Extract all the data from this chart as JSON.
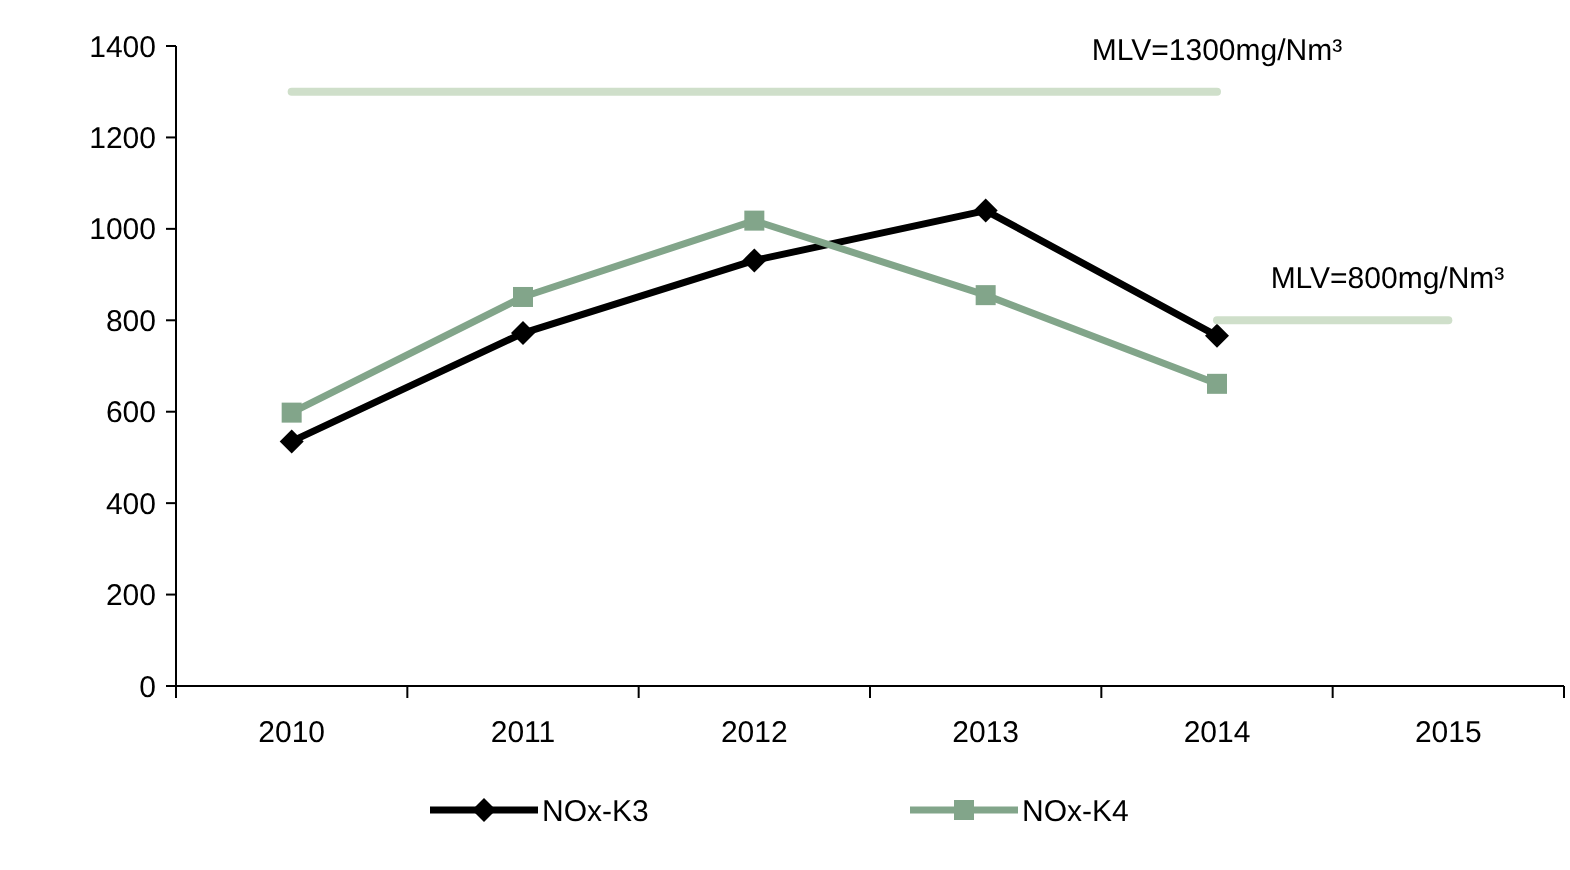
{
  "chart_data": {
    "type": "line",
    "categories": [
      "2010",
      "2011",
      "2012",
      "2013",
      "2014",
      "2015"
    ],
    "ylim": [
      0,
      1400
    ],
    "yticks": [
      0,
      200,
      400,
      600,
      800,
      1000,
      1200,
      1400
    ],
    "grid": false,
    "legend": "bottom",
    "line_style": "solid",
    "series": [
      {
        "name": "NOx-K3",
        "color": "#000000",
        "marker": "diamond",
        "values": [
          535,
          772,
          931,
          1040,
          766,
          null
        ]
      },
      {
        "name": "NOx-K4",
        "color": "#82a58a",
        "marker": "square",
        "values": [
          598,
          851,
          1018,
          855,
          661,
          null
        ]
      },
      {
        "color": "#cfdfca",
        "marker": "none",
        "values": [
          1300,
          1300,
          1300,
          1300,
          1300,
          null
        ]
      },
      {
        "color": "#cfdfca",
        "marker": "none",
        "values": [
          null,
          null,
          null,
          null,
          800,
          800
        ]
      }
    ],
    "annotations": [
      {
        "text": "MLV=1300mg/Nm³",
        "x": "2014",
        "y": 1300
      },
      {
        "text": "MLV=800mg/Nm³",
        "x": "2015",
        "y": 800
      }
    ]
  }
}
